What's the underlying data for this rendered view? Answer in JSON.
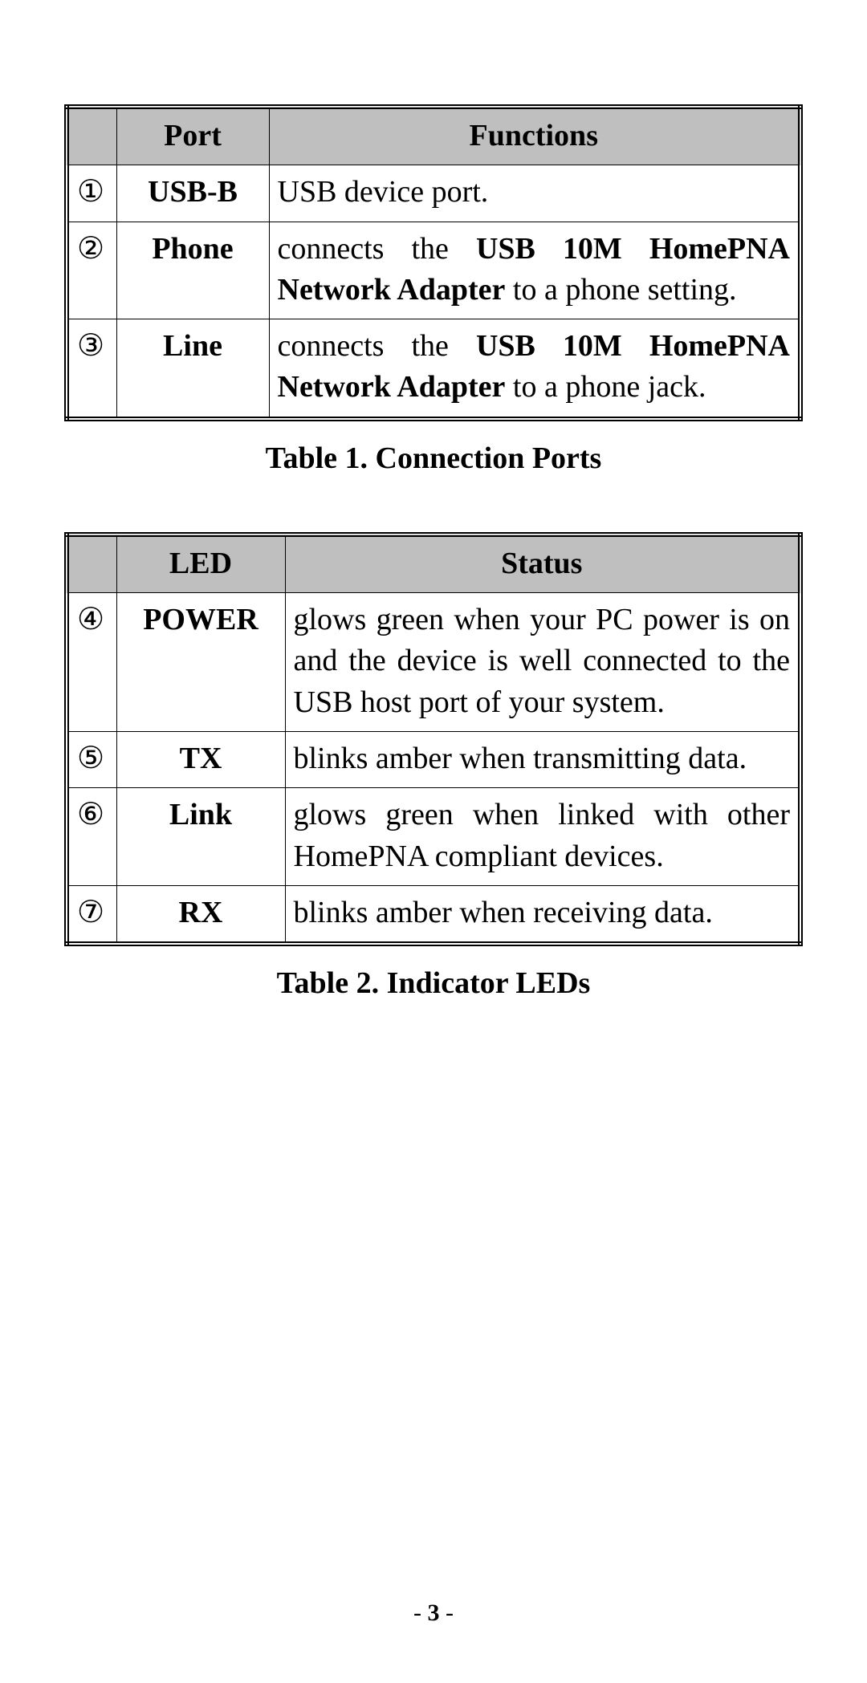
{
  "colors": {
    "header_bg": "#bfbfbf",
    "border": "#000000",
    "text": "#000000",
    "page_bg": "#ffffff"
  },
  "typography": {
    "font_family": "Times New Roman",
    "body_fontsize_pt": 28,
    "caption_fontsize_pt": 28,
    "pagenum_fontsize_pt": 22
  },
  "table1": {
    "columns": [
      "",
      "Port",
      "Functions"
    ],
    "rows": [
      {
        "num": "①",
        "name": "USB-B",
        "desc_html": "USB device port."
      },
      {
        "num": "②",
        "name": "Phone",
        "desc_html": "connects the <b>USB 10M HomePNA Network Adapter</b> to a phone setting."
      },
      {
        "num": "③",
        "name": "Line",
        "desc_html": "connects the <b>USB 10M HomePNA Network Adapter</b> to a phone jack."
      }
    ],
    "caption": "Table 1. Connection Ports"
  },
  "table2": {
    "columns": [
      "",
      "LED",
      "Status"
    ],
    "rows": [
      {
        "num": "④",
        "name": "POWER",
        "desc_html": "glows green when your PC power is on and the device is well connected to the USB host port of your system."
      },
      {
        "num": "⑤",
        "name": "TX",
        "desc_html": "blinks amber when transmitting data."
      },
      {
        "num": "⑥",
        "name": "Link",
        "desc_html": "glows green when linked with other HomePNA compliant devices."
      },
      {
        "num": "⑦",
        "name": "RX",
        "desc_html": "blinks amber when receiving data."
      }
    ],
    "caption": "Table 2. Indicator LEDs"
  },
  "page_number": {
    "prefix": "- ",
    "num": "3",
    "suffix": " -"
  }
}
